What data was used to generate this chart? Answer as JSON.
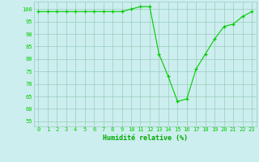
{
  "x": [
    0,
    1,
    2,
    3,
    4,
    5,
    6,
    7,
    8,
    9,
    10,
    11,
    12,
    13,
    14,
    15,
    16,
    17,
    18,
    19,
    20,
    21,
    22,
    23
  ],
  "y": [
    99,
    99,
    99,
    99,
    99,
    99,
    99,
    99,
    99,
    99,
    100,
    101,
    101,
    82,
    73,
    63,
    64,
    76,
    82,
    88,
    93,
    94,
    97,
    99
  ],
  "line_color": "#00cc00",
  "marker": "+",
  "marker_color": "#00cc00",
  "bg_color": "#cceeee",
  "grid_color": "#99ccbb",
  "xlabel": "Humidité relative (%)",
  "xlabel_color": "#00aa00",
  "ylabel_ticks": [
    55,
    60,
    65,
    70,
    75,
    80,
    85,
    90,
    95,
    100
  ],
  "ylim": [
    53,
    103
  ],
  "xlim": [
    -0.5,
    23.5
  ],
  "xtick_labels": [
    "0",
    "1",
    "2",
    "3",
    "4",
    "5",
    "6",
    "7",
    "8",
    "9",
    "10",
    "11",
    "12",
    "13",
    "14",
    "15",
    "16",
    "17",
    "18",
    "19",
    "20",
    "21",
    "22",
    "23"
  ]
}
